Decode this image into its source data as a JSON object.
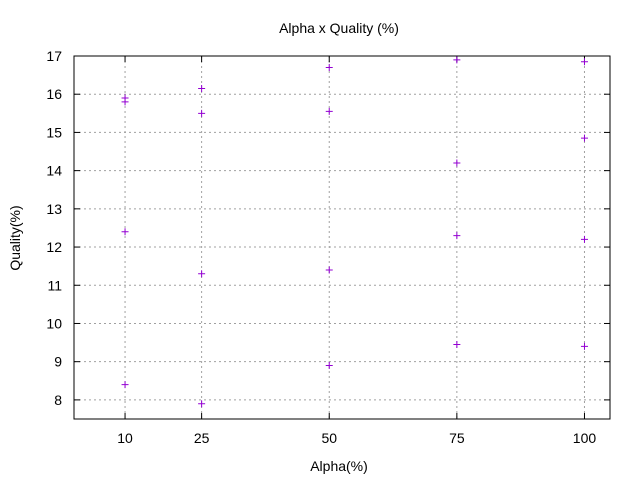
{
  "chart_data": {
    "type": "scatter",
    "title": "Alpha x Quality (%)",
    "xlabel": "Alpha(%)",
    "ylabel": "Quality(%)",
    "xlim": [
      0,
      105
    ],
    "ylim": [
      7.5,
      17
    ],
    "xticks": [
      10,
      25,
      50,
      75,
      100
    ],
    "yticks": [
      8,
      9,
      10,
      11,
      12,
      13,
      14,
      15,
      16,
      17
    ],
    "grid": true,
    "legend": "none",
    "marker": "plus",
    "series": [
      {
        "color": "#9400d3",
        "points": [
          {
            "x": 10,
            "y": 15.9
          },
          {
            "x": 10,
            "y": 15.8
          },
          {
            "x": 10,
            "y": 12.4
          },
          {
            "x": 10,
            "y": 8.4
          },
          {
            "x": 25,
            "y": 16.15
          },
          {
            "x": 25,
            "y": 15.5
          },
          {
            "x": 25,
            "y": 11.3
          },
          {
            "x": 25,
            "y": 7.9
          },
          {
            "x": 50,
            "y": 16.7
          },
          {
            "x": 50,
            "y": 15.55
          },
          {
            "x": 50,
            "y": 11.4
          },
          {
            "x": 50,
            "y": 8.9
          },
          {
            "x": 75,
            "y": 16.9
          },
          {
            "x": 75,
            "y": 14.2
          },
          {
            "x": 75,
            "y": 12.3
          },
          {
            "x": 75,
            "y": 9.45
          },
          {
            "x": 100,
            "y": 16.85
          },
          {
            "x": 100,
            "y": 14.85
          },
          {
            "x": 100,
            "y": 12.2
          },
          {
            "x": 100,
            "y": 9.4
          }
        ]
      }
    ]
  }
}
